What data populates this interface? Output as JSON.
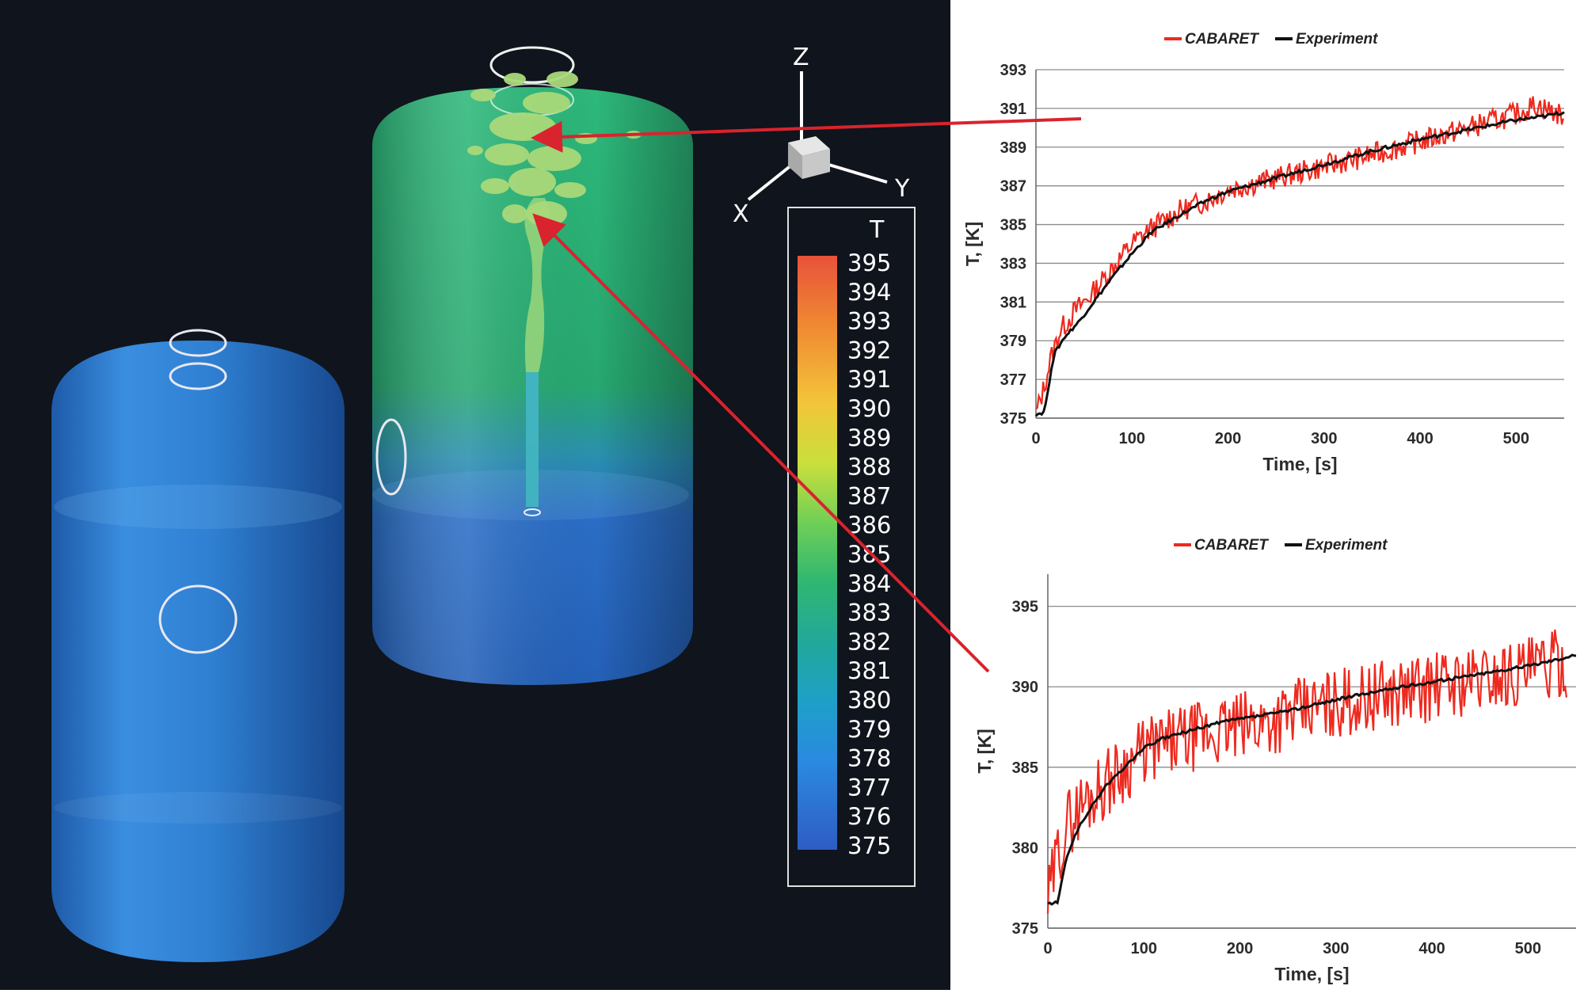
{
  "colorbar": {
    "title": "T",
    "labels": [
      "395",
      "394",
      "393",
      "392",
      "391",
      "390",
      "389",
      "388",
      "387",
      "386",
      "385",
      "384",
      "383",
      "382",
      "381",
      "380",
      "379",
      "378",
      "377",
      "376",
      "375"
    ]
  },
  "axes_triad": {
    "z": "Z",
    "x": "X",
    "y": "Y"
  },
  "colors": {
    "scene_background": "#10141c",
    "cabaret": "#ee2a1f",
    "experiment": "#111111",
    "arrow": "#d9232e",
    "tank_blue": "#2a77c8",
    "tank_green": "#27a864"
  },
  "chart_data": [
    {
      "type": "line",
      "legend": [
        "CABARET",
        "Experiment"
      ],
      "xlabel": "Time, [s]",
      "ylabel": "T, [K]",
      "xlim": [
        0,
        550
      ],
      "ylim": [
        375,
        393
      ],
      "xticks": [
        "0",
        "100",
        "200",
        "300",
        "400",
        "500"
      ],
      "yticks": [
        "375",
        "377",
        "379",
        "381",
        "383",
        "385",
        "387",
        "389",
        "391",
        "393"
      ],
      "grid": true,
      "legend_position": "top",
      "series": [
        {
          "name": "Experiment",
          "x": [
            0,
            8,
            12,
            16,
            20,
            30,
            45,
            60,
            80,
            100,
            120,
            150,
            180,
            200,
            250,
            300,
            350,
            400,
            450,
            500,
            530,
            550
          ],
          "values": [
            375.2,
            375.3,
            376.2,
            377.6,
            378.4,
            379.2,
            380.0,
            381.0,
            382.3,
            383.5,
            384.6,
            385.5,
            386.3,
            386.7,
            387.4,
            388.1,
            388.8,
            389.4,
            389.9,
            390.4,
            390.6,
            390.8
          ]
        },
        {
          "name": "CABARET",
          "x": [
            0,
            8,
            15,
            25,
            40,
            60,
            80,
            100,
            120,
            150,
            180,
            200,
            250,
            300,
            350,
            400,
            450,
            500,
            520,
            550
          ],
          "values": [
            375.2,
            376.5,
            378.0,
            379.5,
            380.5,
            381.5,
            382.8,
            384.0,
            384.8,
            385.7,
            386.3,
            386.8,
            387.4,
            388.0,
            388.6,
            389.3,
            390.0,
            390.7,
            391.2,
            390.6
          ],
          "noise_amplitude": 0.6
        }
      ]
    },
    {
      "type": "line",
      "legend": [
        "CABARET",
        "Experiment"
      ],
      "xlabel": "Time, [s]",
      "ylabel": "T, [K]",
      "xlim": [
        0,
        550
      ],
      "ylim": [
        375,
        397
      ],
      "xticks": [
        "0",
        "100",
        "200",
        "300",
        "400",
        "500"
      ],
      "yticks": [
        "375",
        "380",
        "385",
        "390",
        "395"
      ],
      "grid": true,
      "legend_position": "top",
      "series": [
        {
          "name": "Experiment",
          "x": [
            0,
            10,
            15,
            20,
            30,
            45,
            60,
            80,
            100,
            120,
            150,
            180,
            200,
            250,
            300,
            350,
            400,
            450,
            500,
            530,
            550
          ],
          "values": [
            376.5,
            376.6,
            378.0,
            379.5,
            381.0,
            382.5,
            383.8,
            385.0,
            386.2,
            386.8,
            387.3,
            387.8,
            388.0,
            388.5,
            389.2,
            389.8,
            390.3,
            390.8,
            391.3,
            391.7,
            392.0
          ]
        },
        {
          "name": "CABARET",
          "x": [
            0,
            10,
            20,
            40,
            60,
            80,
            100,
            130,
            160,
            200,
            250,
            300,
            350,
            400,
            450,
            500,
            540
          ],
          "values": [
            376.5,
            379.5,
            381.5,
            383.0,
            384.0,
            385.0,
            386.0,
            386.5,
            387.0,
            387.5,
            388.2,
            389.0,
            389.5,
            390.0,
            390.5,
            391.0,
            391.5
          ],
          "noise_amplitude": 2.2
        }
      ]
    }
  ]
}
